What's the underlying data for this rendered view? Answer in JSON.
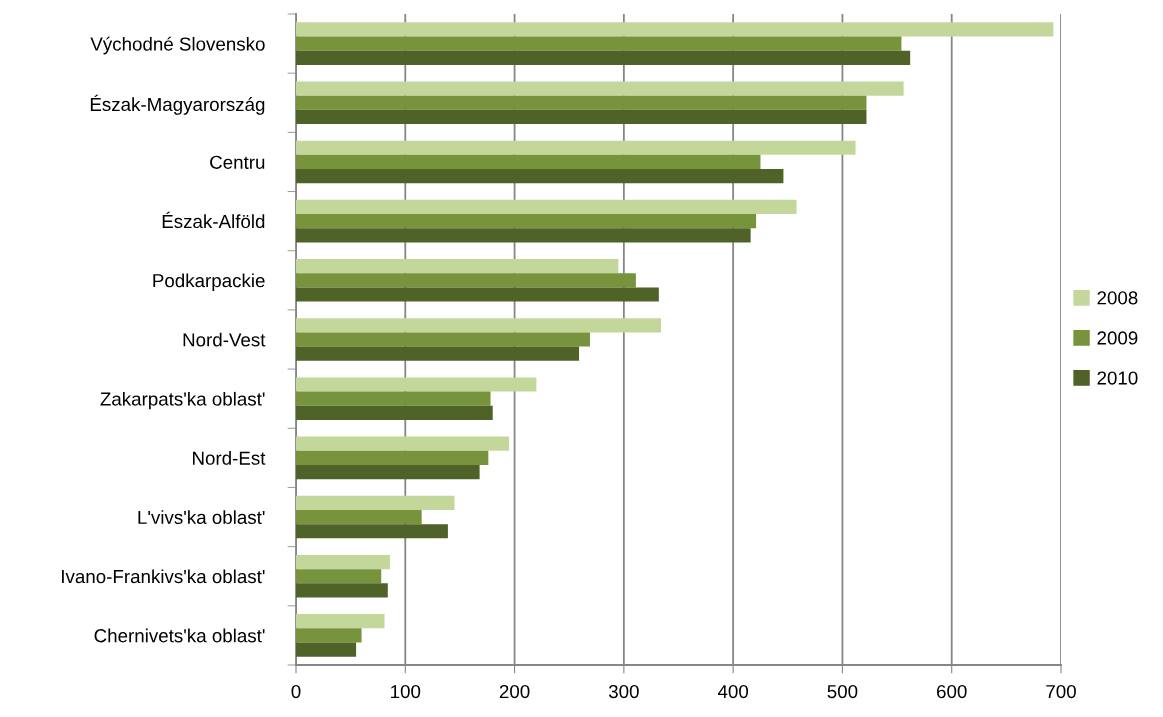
{
  "chart_data": {
    "type": "bar",
    "orientation": "horizontal",
    "categories": [
      "Východné Slovensko",
      "Észak-Magyarország",
      "Centru",
      "Észak-Alföld",
      "Podkarpackie",
      "Nord-Vest",
      "Zakarpats'ka oblast'",
      "Nord-Est",
      "L'vivs'ka oblast'",
      "Ivano-Frankivs'ka oblast'",
      "Chernivets'ka oblast'"
    ],
    "series": [
      {
        "name": "2008",
        "color": "#c4d79b",
        "values": [
          693,
          556,
          512,
          458,
          295,
          334,
          220,
          195,
          145,
          86,
          81
        ]
      },
      {
        "name": "2009",
        "color": "#77933c",
        "values": [
          554,
          522,
          425,
          421,
          311,
          269,
          178,
          176,
          115,
          78,
          60
        ]
      },
      {
        "name": "2010",
        "color": "#4f6228",
        "values": [
          562,
          522,
          446,
          416,
          332,
          259,
          180,
          168,
          139,
          84,
          55
        ]
      }
    ],
    "xlim": [
      0,
      700
    ],
    "xticks": [
      0,
      100,
      200,
      300,
      400,
      500,
      600,
      700
    ],
    "grid": "x",
    "legend": "right"
  }
}
